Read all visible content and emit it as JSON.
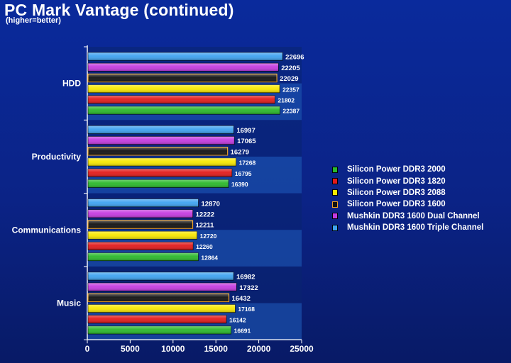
{
  "header": {
    "title": "PC Mark Vantage (continued)",
    "subtitle": "(higher=better)"
  },
  "colors": {
    "background": "#0b2386",
    "plot_band_dark": "#0a2470",
    "plot_band_light": "#1a4ea8"
  },
  "chart_data": {
    "type": "bar",
    "orientation": "horizontal",
    "categories": [
      "HDD",
      "Productivity",
      "Communications",
      "Music"
    ],
    "xlim": [
      0,
      25000
    ],
    "xticks": [
      0,
      5000,
      10000,
      15000,
      20000,
      25000
    ],
    "xlabel": "",
    "ylabel": "",
    "legend_position": "right",
    "series": [
      {
        "name": "Mushkin DDR3 1600 Triple Channel",
        "color": "#3ea2f0",
        "values": [
          22696,
          16997,
          12870,
          16982
        ]
      },
      {
        "name": "Mushkin DDR3 1600 Dual Channel",
        "color": "#c43ae0",
        "values": [
          22205,
          17065,
          12222,
          17322
        ]
      },
      {
        "name": "Silicon Power DDR3 1600",
        "color": "#111111",
        "edge": "#f0a020",
        "values": [
          22029,
          16279,
          12211,
          16432
        ]
      },
      {
        "name": "Silicon Power DDR3 2088",
        "color": "#f8e800",
        "values": [
          22357,
          17268,
          12720,
          17168
        ]
      },
      {
        "name": "Silicon Power DDR3 1820",
        "color": "#e21a1a",
        "values": [
          21802,
          16795,
          12260,
          16142
        ]
      },
      {
        "name": "Silicon Power DDR3 2000",
        "color": "#2ab82a",
        "values": [
          22387,
          16390,
          12864,
          16691
        ]
      }
    ],
    "legend": [
      {
        "name": "Silicon Power DDR3 2000",
        "color": "#2ab82a"
      },
      {
        "name": "Silicon Power DDR3 1820",
        "color": "#e21a1a"
      },
      {
        "name": "Silicon Power DDR3 2088",
        "color": "#f8e800"
      },
      {
        "name": "Silicon Power DDR3 1600",
        "color": "#111111",
        "edge": "#f0a020"
      },
      {
        "name": "Mushkin DDR3 1600 Dual Channel",
        "color": "#c43ae0"
      },
      {
        "name": "Mushkin DDR3 1600 Triple Channel",
        "color": "#3ea2f0"
      }
    ]
  }
}
